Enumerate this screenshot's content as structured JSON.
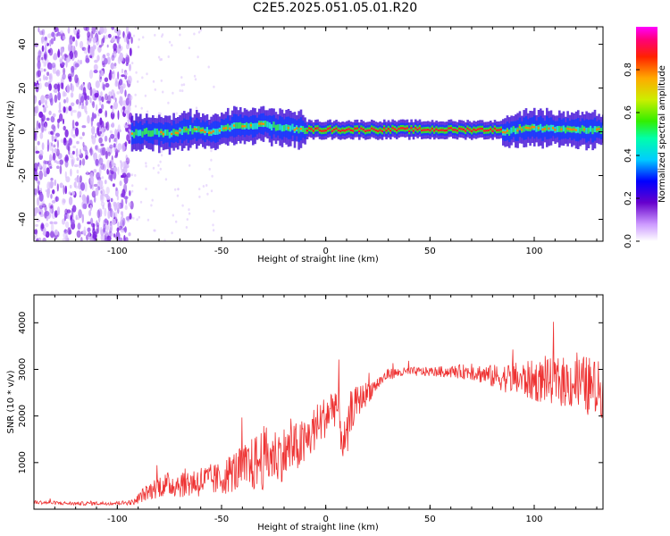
{
  "title": "C2E5.2025.051.05.01.R20",
  "colorbar": {
    "label": "Normalized spectral amplitude",
    "ticks": [
      "0.0",
      "0.2",
      "0.4",
      "0.6",
      "0.8"
    ]
  },
  "chart_data": [
    {
      "type": "heatmap",
      "title": "C2E5.2025.051.05.01.R20",
      "xlabel": "Height of straight line (km)",
      "ylabel": "Frequency (Hz)",
      "xlim": [
        -140,
        133
      ],
      "ylim": [
        -50,
        48
      ],
      "x_ticks": [
        "-100",
        "-50",
        "0",
        "50",
        "100"
      ],
      "y_ticks": [
        "-40",
        "-20",
        "0",
        "20",
        "40"
      ],
      "colorbar_range": [
        0.0,
        1.0
      ],
      "ridge": {
        "x": [
          -93,
          -85,
          -75,
          -65,
          -55,
          -45,
          -35,
          -28,
          -20,
          -10,
          0,
          10,
          20,
          40,
          60,
          80,
          88,
          95,
          100,
          110,
          120,
          133
        ],
        "frequency": [
          -1,
          0,
          -1,
          1,
          0,
          2,
          3,
          3,
          2,
          1,
          1,
          1,
          1,
          1,
          1,
          1,
          0,
          2,
          2,
          1,
          1,
          1
        ]
      },
      "noise_region": {
        "x_from": -140,
        "x_to": -93,
        "frequency_from": -50,
        "frequency_to": 48
      }
    },
    {
      "type": "line",
      "xlabel": "Height of straight line (km)",
      "ylabel": "SNR (10 * v/v)",
      "xlim": [
        -140,
        133
      ],
      "ylim": [
        0,
        4600
      ],
      "x_ticks": [
        "-100",
        "-50",
        "0",
        "50",
        "100"
      ],
      "y_ticks": [
        "1000",
        "2000",
        "3000",
        "4000"
      ],
      "color": "#ee3333",
      "series": [
        {
          "x": [
            -140,
            -120,
            -100,
            -92,
            -88,
            -80,
            -70,
            -60,
            -50,
            -45,
            -40,
            -35,
            -30,
            -25,
            -20,
            -15,
            -10,
            -5,
            0,
            5,
            8,
            10,
            12,
            15,
            20,
            25,
            30,
            40,
            50,
            60,
            70,
            80,
            90,
            100,
            110,
            120,
            125,
            133
          ],
          "values": [
            150,
            120,
            130,
            150,
            300,
            500,
            550,
            600,
            650,
            800,
            850,
            950,
            1100,
            1150,
            1200,
            1300,
            1400,
            1750,
            2000,
            2300,
            1500,
            1400,
            2100,
            2300,
            2500,
            2700,
            2900,
            2950,
            2950,
            2950,
            2950,
            2850,
            2800,
            2750,
            2750,
            2700,
            2650,
            2550
          ],
          "spread": [
            40,
            40,
            40,
            60,
            150,
            250,
            300,
            350,
            350,
            450,
            500,
            600,
            700,
            600,
            600,
            550,
            550,
            500,
            450,
            500,
            450,
            500,
            450,
            350,
            250,
            150,
            120,
            100,
            100,
            130,
            180,
            250,
            350,
            450,
            500,
            600,
            650,
            600
          ]
        }
      ]
    }
  ]
}
